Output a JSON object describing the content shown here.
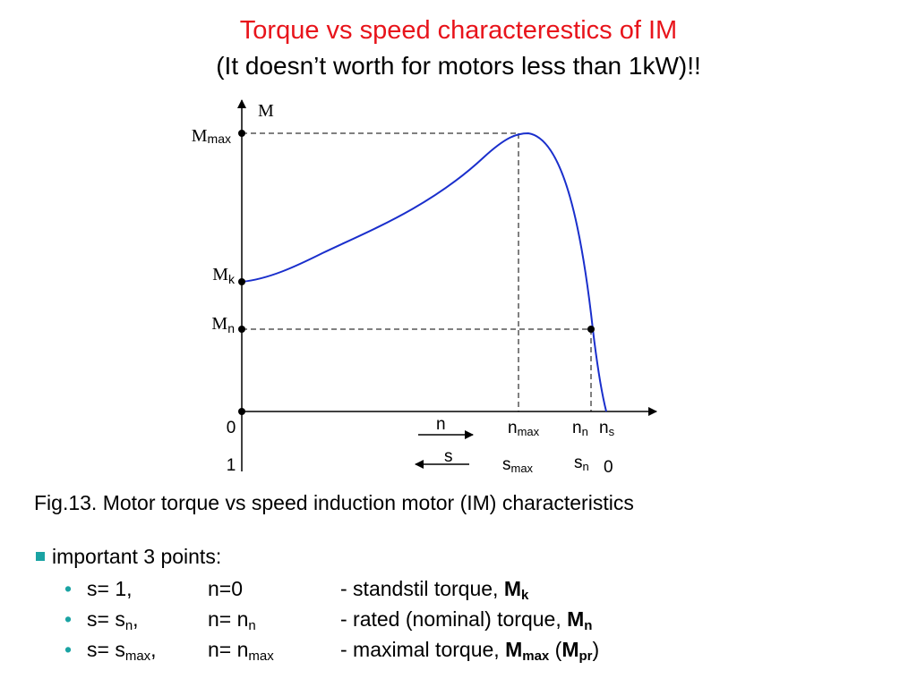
{
  "header": {
    "title": "Torque vs speed characterestics of IM",
    "subtitle": "(It doesn’t worth for motors less than 1kW)!!"
  },
  "diagram": {
    "curve_color": "#1a2fcc",
    "y_axis_label": "M",
    "y_labels": [
      {
        "base": "M",
        "sub": "max"
      },
      {
        "base": "M",
        "sub": "k"
      },
      {
        "base": "M",
        "sub": "n"
      }
    ],
    "x_speed_labels": [
      {
        "base": "0",
        "sub": ""
      },
      {
        "base": "n",
        "sub": "max"
      },
      {
        "base": "n",
        "sub": "n"
      },
      {
        "base": "n",
        "sub": "s"
      }
    ],
    "x_slip_labels": [
      {
        "base": "1",
        "sub": ""
      },
      {
        "base": "s",
        "sub": "max"
      },
      {
        "base": "s",
        "sub": "n"
      },
      {
        "base": "0",
        "sub": ""
      }
    ],
    "direction_n": "n",
    "direction_s": "s"
  },
  "caption": "Fig.13. Motor torque vs speed induction motor (IM) characteristics",
  "points": {
    "heading": "important 3 points:",
    "rows": [
      {
        "s_base": "s= 1,",
        "s_sub": "",
        "s_tail": "",
        "n_base": "n=0",
        "n_sub": "",
        "desc": "- standstil torque, ",
        "sym": "M",
        "sym_sub": "k",
        "extra_pre": "",
        "extra_sym": "",
        "extra_sub": "",
        "extra_post": ""
      },
      {
        "s_base": "s= s",
        "s_sub": "n",
        "s_tail": ",",
        "n_base": "n= n",
        "n_sub": "n",
        "desc": "- rated (nominal) torque, ",
        "sym": "M",
        "sym_sub": "n",
        "extra_pre": "",
        "extra_sym": "",
        "extra_sub": "",
        "extra_post": ""
      },
      {
        "s_base": "s= s",
        "s_sub": "max",
        "s_tail": ",",
        "n_base": "n= n",
        "n_sub": "max",
        "desc": "- maximal torque, ",
        "sym": "M",
        "sym_sub": "max",
        "extra_pre": " (",
        "extra_sym": "M",
        "extra_sub": "pr",
        "extra_post": ")"
      }
    ]
  }
}
